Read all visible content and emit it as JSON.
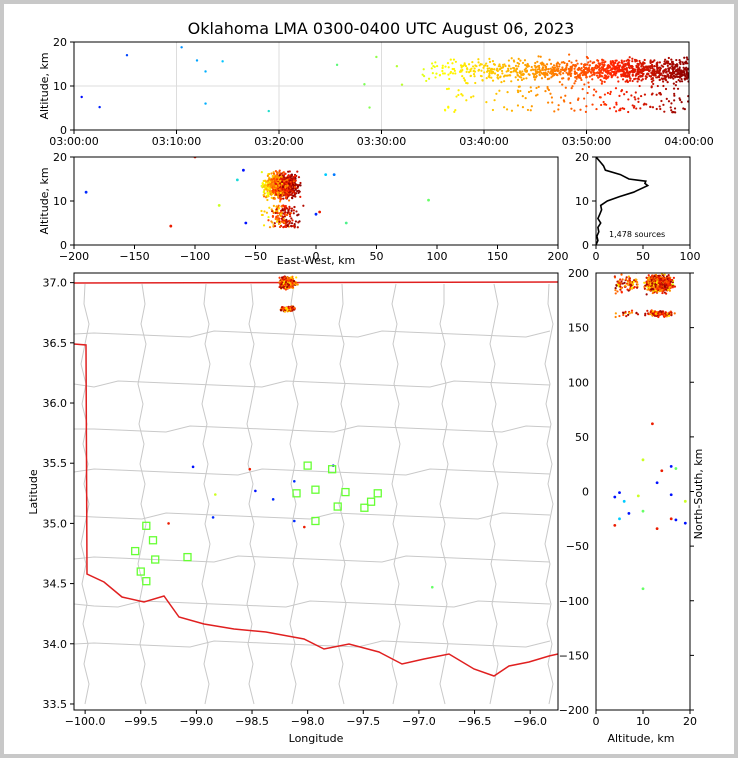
{
  "chart_data": [
    {
      "type": "scatter",
      "title": "Oklahoma LMA 0300-0400 UTC August 06, 2023",
      "panel": "altitude-vs-time",
      "xlabel": "",
      "ylabel": "Altitude, km",
      "xlim": [
        "03:00:00",
        "04:00:00"
      ],
      "ylim": [
        0,
        20
      ],
      "xticks": [
        "03:00:00",
        "03:10:00",
        "03:20:00",
        "03:30:00",
        "03:40:00",
        "03:50:00",
        "04:00:00"
      ],
      "yticks": [
        "0",
        "10",
        "20"
      ],
      "grid": true,
      "colormap": "time: blue to yellow to red to dark red",
      "sample_points": [
        {
          "time": "03:00:45",
          "alt": 7.5
        },
        {
          "time": "03:02:30",
          "alt": 5.2
        },
        {
          "time": "03:05:10",
          "alt": 17.0
        },
        {
          "time": "03:10:30",
          "alt": 18.8
        },
        {
          "time": "03:12:00",
          "alt": 15.8
        },
        {
          "time": "03:12:50",
          "alt": 13.3
        },
        {
          "time": "03:12:50",
          "alt": 6.0
        },
        {
          "time": "03:14:30",
          "alt": 15.6
        },
        {
          "time": "03:19:00",
          "alt": 4.3
        },
        {
          "time": "03:25:40",
          "alt": 14.8
        },
        {
          "time": "03:28:20",
          "alt": 10.4
        },
        {
          "time": "03:28:50",
          "alt": 5.1
        },
        {
          "time": "03:29:30",
          "alt": 16.6
        },
        {
          "time": "03:31:30",
          "alt": 14.5
        },
        {
          "time": "03:32:00",
          "alt": 10.3
        }
      ],
      "dense_regions": [
        {
          "time_start": "03:34:00",
          "time_end": "03:42:00",
          "alt_min": 5,
          "alt_max": 19,
          "color": "#ffff33"
        },
        {
          "time_start": "03:42:00",
          "time_end": "03:48:00",
          "alt_min": 4,
          "alt_max": 20,
          "color": "#ffa500"
        },
        {
          "time_start": "03:48:00",
          "time_end": "03:54:00",
          "alt_min": 4,
          "alt_max": 20,
          "color": "#ff5500"
        },
        {
          "time_start": "03:54:00",
          "time_end": "04:00:00",
          "alt_min": 3,
          "alt_max": 20,
          "color": "#cc0000"
        }
      ]
    },
    {
      "type": "scatter",
      "panel": "altitude-vs-east-west",
      "xlabel": "East-West, km",
      "ylabel": "Altitude, km",
      "xlim": [
        -200,
        200
      ],
      "ylim": [
        0,
        20
      ],
      "xticks": [
        "−200",
        "−150",
        "−100",
        "−50",
        "0",
        "50",
        "100",
        "150",
        "200"
      ],
      "yticks": [
        "0",
        "10",
        "20"
      ]
    },
    {
      "type": "histogram",
      "panel": "altitude-histogram",
      "xlim": [
        0,
        100
      ],
      "ylim": [
        0,
        20
      ],
      "xticks": [
        "0",
        "50",
        "100"
      ],
      "yticks": [
        "0",
        "10",
        "20"
      ],
      "annotation": "1,478 sources",
      "profile": [
        {
          "alt": 0.0,
          "count": 0
        },
        {
          "alt": 1.0,
          "count": 2
        },
        {
          "alt": 2.0,
          "count": 1
        },
        {
          "alt": 3.0,
          "count": 3
        },
        {
          "alt": 4.0,
          "count": 2
        },
        {
          "alt": 5.0,
          "count": 5
        },
        {
          "alt": 6.0,
          "count": 2
        },
        {
          "alt": 7.0,
          "count": 4
        },
        {
          "alt": 8.0,
          "count": 6
        },
        {
          "alt": 9.0,
          "count": 5
        },
        {
          "alt": 10.0,
          "count": 12
        },
        {
          "alt": 11.0,
          "count": 25
        },
        {
          "alt": 12.0,
          "count": 40
        },
        {
          "alt": 13.0,
          "count": 50
        },
        {
          "alt": 13.5,
          "count": 55
        },
        {
          "alt": 14.0,
          "count": 52
        },
        {
          "alt": 14.5,
          "count": 53
        },
        {
          "alt": 15.0,
          "count": 35
        },
        {
          "alt": 16.0,
          "count": 26
        },
        {
          "alt": 17.0,
          "count": 10
        },
        {
          "alt": 18.0,
          "count": 8
        },
        {
          "alt": 19.0,
          "count": 4
        },
        {
          "alt": 19.5,
          "count": 2
        },
        {
          "alt": 20.0,
          "count": 0
        }
      ]
    },
    {
      "type": "map",
      "panel": "plan-view",
      "xlabel": "Longitude",
      "ylabel": "Latitude",
      "xlim": [
        -100.1,
        -95.75
      ],
      "ylim": [
        33.45,
        37.08
      ],
      "xticks": [
        "−100.0",
        "−99.5",
        "−99.0",
        "−98.5",
        "−98.0",
        "−97.5",
        "−97.0",
        "−96.5",
        "−96.0"
      ],
      "yticks": [
        "33.5",
        "34.0",
        "34.5",
        "35.0",
        "35.5",
        "36.0",
        "36.5",
        "37.0"
      ],
      "stations": [
        {
          "lon": -99.45,
          "lat": 34.98
        },
        {
          "lon": -99.39,
          "lat": 34.86
        },
        {
          "lon": -99.55,
          "lat": 34.77
        },
        {
          "lon": -99.37,
          "lat": 34.7
        },
        {
          "lon": -99.5,
          "lat": 34.6
        },
        {
          "lon": -99.45,
          "lat": 34.52
        },
        {
          "lon": -99.08,
          "lat": 34.72
        },
        {
          "lon": -98.0,
          "lat": 35.48
        },
        {
          "lon": -97.78,
          "lat": 35.45
        },
        {
          "lon": -98.1,
          "lat": 35.25
        },
        {
          "lon": -97.93,
          "lat": 35.28
        },
        {
          "lon": -97.66,
          "lat": 35.26
        },
        {
          "lon": -97.37,
          "lat": 35.25
        },
        {
          "lon": -97.43,
          "lat": 35.18
        },
        {
          "lon": -97.73,
          "lat": 35.14
        },
        {
          "lon": -97.49,
          "lat": 35.13
        },
        {
          "lon": -97.93,
          "lat": 35.02
        }
      ]
    },
    {
      "type": "scatter",
      "panel": "north-south-vs-altitude",
      "xlabel": "Altitude, km",
      "ylabel": "North-South, km",
      "xlim": [
        0,
        20
      ],
      "ylim": [
        -200,
        200
      ],
      "xticks": [
        "0",
        "10",
        "20"
      ],
      "yticks": [
        "−200",
        "−150",
        "−100",
        "−50",
        "0",
        "50",
        "100",
        "150",
        "200"
      ]
    }
  ]
}
